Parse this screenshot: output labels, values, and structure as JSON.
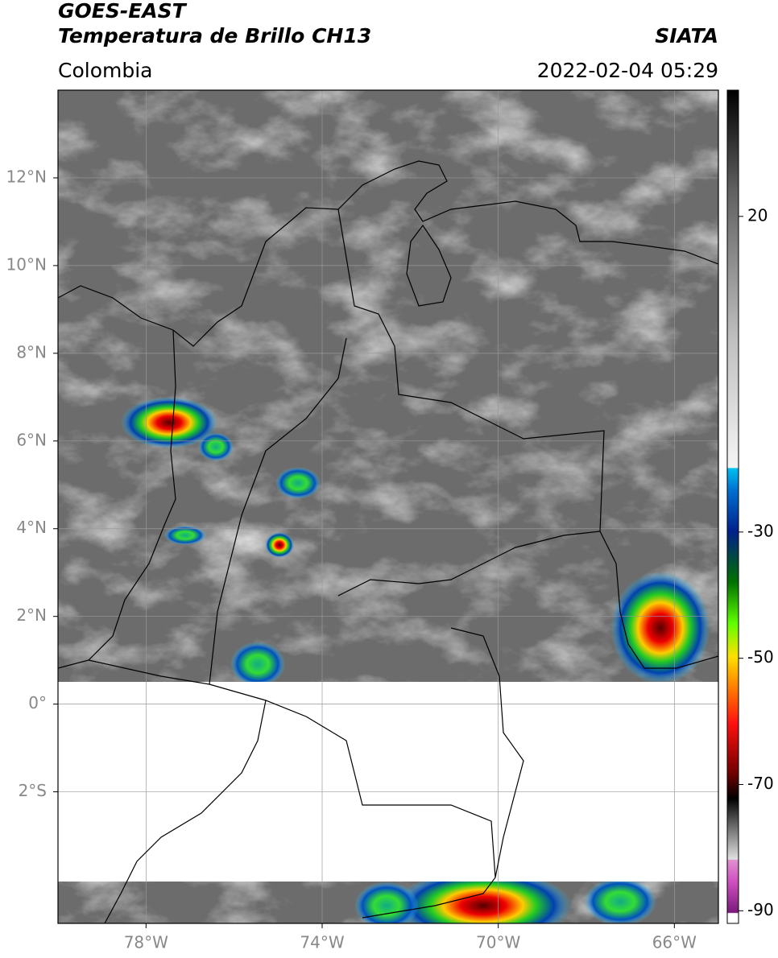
{
  "header": {
    "satellite": "GOES-EAST",
    "product": "Temperatura de Brillo CH13",
    "source": "SIATA",
    "region": "Colombia",
    "datetime": "2022-02-04 05:29"
  },
  "map": {
    "xlim": [
      -80,
      -65
    ],
    "ylim": [
      -5,
      14
    ],
    "xticks": [
      {
        "value": -78,
        "label": "78°W"
      },
      {
        "value": -74,
        "label": "74°W"
      },
      {
        "value": -70,
        "label": "70°W"
      },
      {
        "value": -66,
        "label": "66°W"
      }
    ],
    "yticks": [
      {
        "value": 12,
        "label": "12°N"
      },
      {
        "value": 10,
        "label": "10°N"
      },
      {
        "value": 8,
        "label": "8°N"
      },
      {
        "value": 6,
        "label": "6°N"
      },
      {
        "value": 4,
        "label": "4°N"
      },
      {
        "value": 2,
        "label": "2°N"
      },
      {
        "value": 0,
        "label": "0°"
      },
      {
        "value": -2,
        "label": "2°S"
      }
    ],
    "grid": true
  },
  "colorbar": {
    "lim": [
      -92,
      40
    ],
    "ticks": [
      20,
      -30,
      -50,
      -70,
      -90
    ]
  }
}
